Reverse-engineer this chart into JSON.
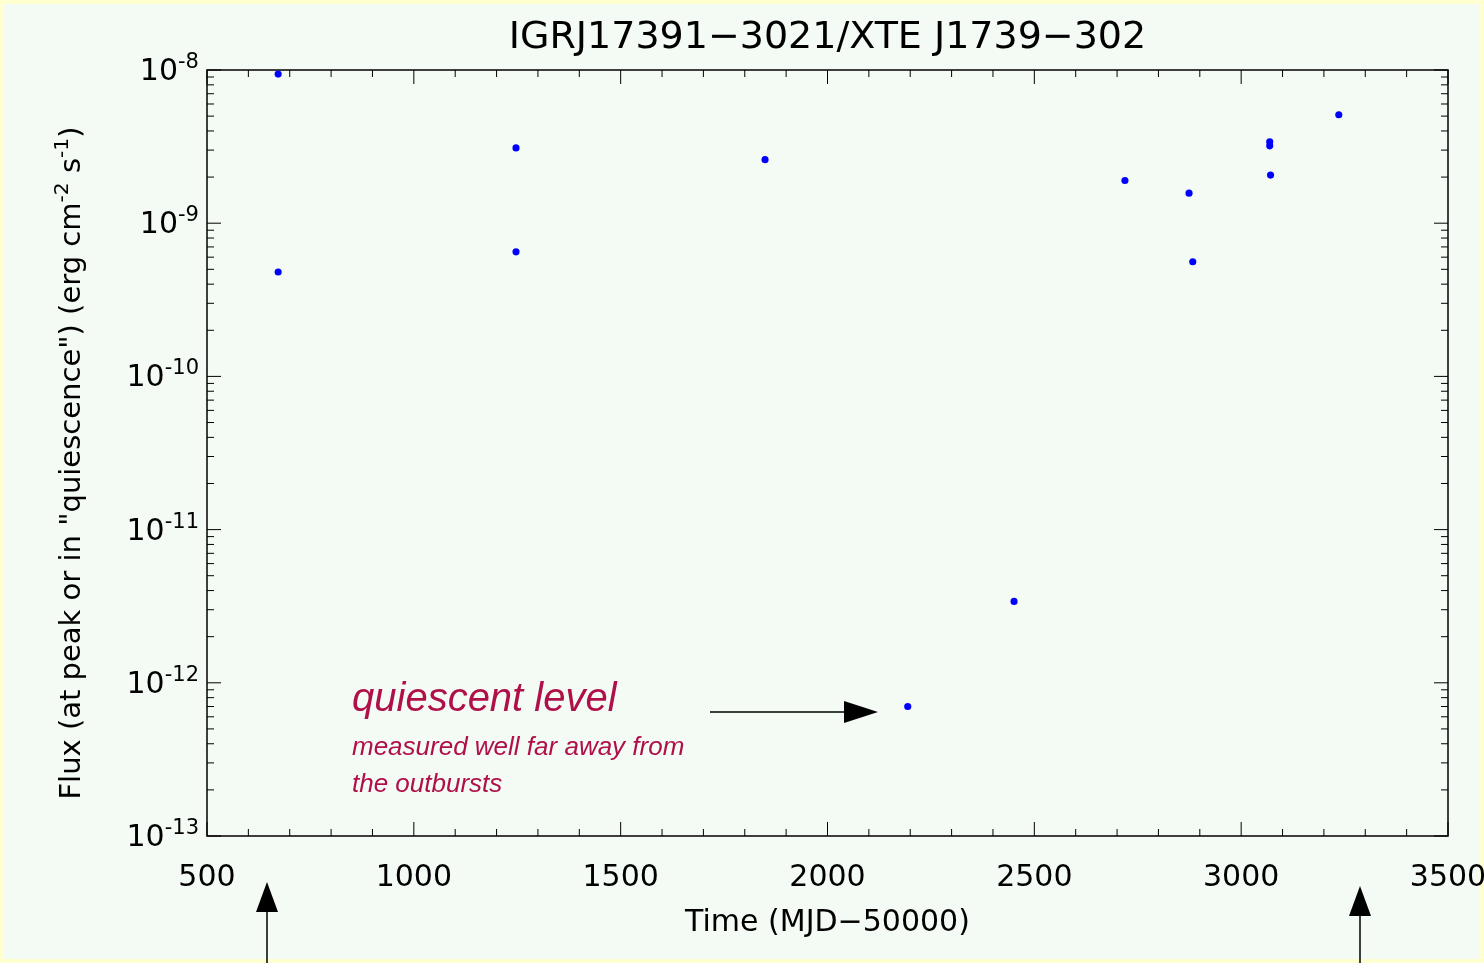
{
  "chart_data": {
    "type": "scatter",
    "title": "IGRJ17391−3021/XTE J1739−302",
    "xlabel": "Time (MJD−50000)",
    "ylabel": "Flux (at peak or in \"quiescence\") (erg cm$^{-2}$ s$^{-1}$)",
    "x": [
      672,
      672,
      1247,
      1247,
      1849,
      2194,
      2451,
      2719,
      2874,
      2883,
      3069,
      3069,
      3071,
      3236
    ],
    "series": [
      {
        "color": "#0000ff",
        "values": [
          9.4e-09,
          4.8e-10,
          3.1e-09,
          6.5e-10,
          2.6e-09,
          7e-13,
          3.4e-12,
          1.9e-09,
          1.57e-09,
          5.6e-10,
          3.4e-09,
          3.2e-09,
          2.06e-09,
          5.1e-09
        ]
      }
    ],
    "log": "y",
    "marker": "circle",
    "grid": false,
    "xlim": [
      500,
      3500
    ],
    "xticks": [
      500,
      1000,
      1500,
      2000,
      2500,
      3000,
      3500
    ],
    "ylim": [
      1e-13,
      1e-08
    ],
    "yticks": [
      {
        "value": 1e-13,
        "label": "10$^{-13}$"
      },
      {
        "value": 1e-12,
        "label": "10$^{-12}$"
      },
      {
        "value": 1e-11,
        "label": "10$^{-11}$"
      },
      {
        "value": 1e-10,
        "label": "10$^{-10}$"
      },
      {
        "value": 1e-09,
        "label": "10$^{-9}$"
      },
      {
        "value": 1e-08,
        "label": "10$^{-8}$"
      }
    ],
    "annotations": [
      "quiescent level",
      "measured well far away from the outbursts"
    ]
  }
}
